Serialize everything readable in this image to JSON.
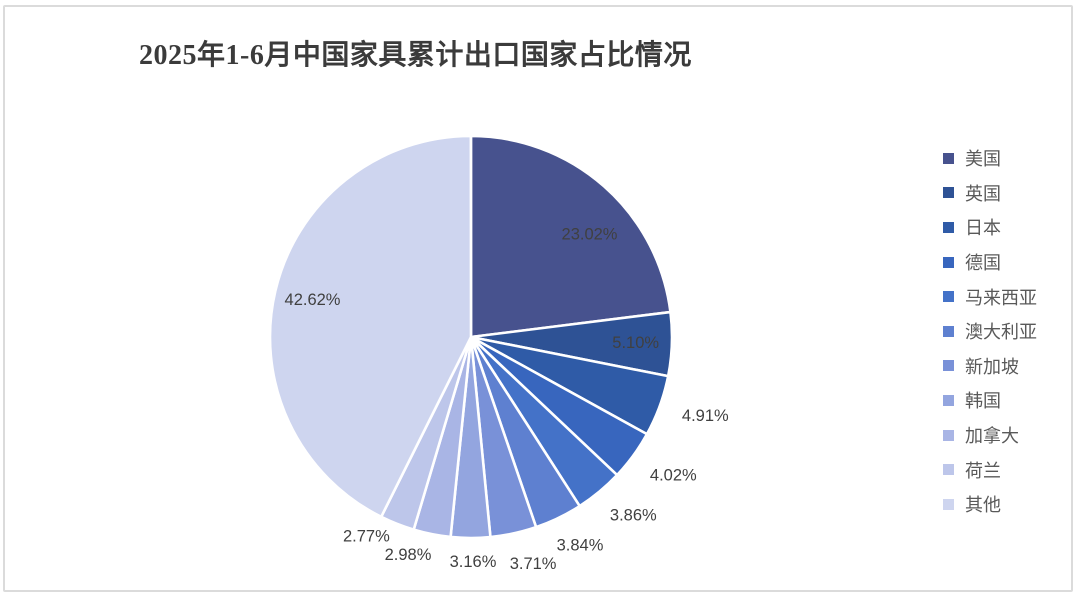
{
  "title": "2025年1-6月中国家具累计出口国家占比情况",
  "colors": {
    "title_text": "#3b3b3b",
    "label_text": "#404040",
    "legend_text": "#595959",
    "card_border": "#dbdbdb",
    "slice_gap": "#ffffff"
  },
  "chart_data": {
    "type": "pie",
    "title": "2025年1-6月中国家具累计出口国家占比情况",
    "categories": [
      "美国",
      "英国",
      "日本",
      "德国",
      "马来西亚",
      "澳大利亚",
      "新加坡",
      "韩国",
      "加拿大",
      "荷兰",
      "其他"
    ],
    "values": [
      23.02,
      5.1,
      4.91,
      4.02,
      3.86,
      3.84,
      3.71,
      3.16,
      2.98,
      2.77,
      42.62
    ],
    "labels": [
      "23.02%",
      "5.10%",
      "4.91%",
      "4.02%",
      "3.86%",
      "3.84%",
      "3.71%",
      "3.16%",
      "2.98%",
      "2.77%",
      "42.62%"
    ],
    "slice_colors": [
      "#47528E",
      "#2E5295",
      "#2F5BA7",
      "#3866BE",
      "#4472C8",
      "#5E80D0",
      "#7991D8",
      "#93A5DF",
      "#A9B5E5",
      "#BDC6EA",
      "#CED5EF"
    ],
    "unit": "%",
    "start_angle_deg": 0,
    "direction": "clockwise",
    "legend_position": "right",
    "grid": false
  }
}
